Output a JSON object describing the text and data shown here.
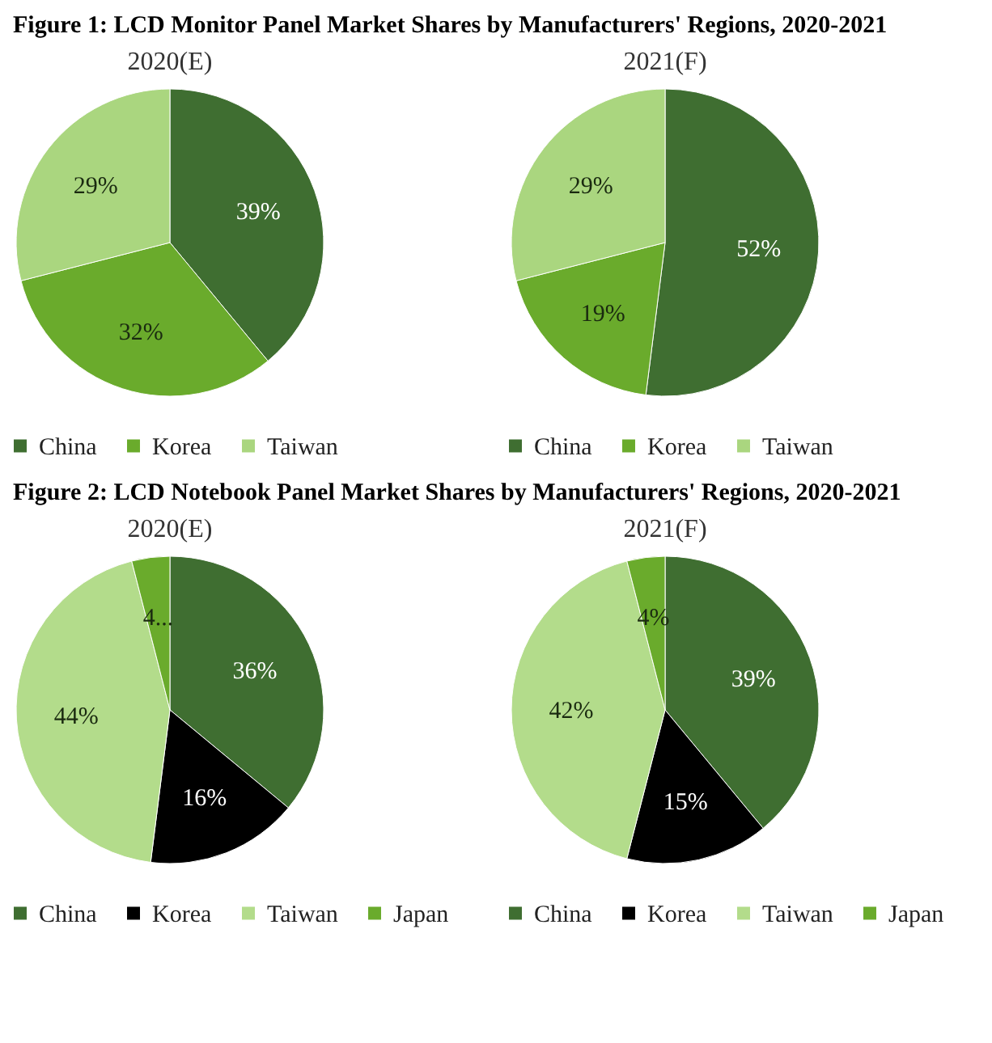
{
  "chart_data": [
    {
      "type": "pie",
      "title": "Figure 1: LCD Monitor Panel Market Shares by Manufacturers' Regions, 2020-2021",
      "subtitle": "2020(E)",
      "categories": [
        "China",
        "Korea",
        "Taiwan"
      ],
      "values": [
        39,
        32,
        29
      ],
      "colors": [
        "#3f6e31",
        "#6aab2c",
        "#aad67f"
      ],
      "value_labels": [
        "39%",
        "32%",
        "29%"
      ],
      "legend": "bottom"
    },
    {
      "type": "pie",
      "title": "2021(F)",
      "categories": [
        "China",
        "Korea",
        "Taiwan"
      ],
      "values": [
        52,
        19,
        29
      ],
      "colors": [
        "#3f6e31",
        "#6aab2c",
        "#aad67f"
      ],
      "value_labels": [
        "52%",
        "19%",
        "29%"
      ],
      "legend": "bottom"
    },
    {
      "type": "pie",
      "title": "Figure 2: LCD Notebook Panel Market Shares by Manufacturers' Regions, 2020-2021",
      "subtitle": "2020(E)",
      "categories": [
        "China",
        "Korea",
        "Taiwan",
        "Japan"
      ],
      "values": [
        36,
        16,
        44,
        4
      ],
      "colors": [
        "#3f6e31",
        "#000000",
        "#b3dc8b",
        "#6aab2c"
      ],
      "value_labels": [
        "36%",
        "16%",
        "44%",
        "4..."
      ],
      "legend": "bottom"
    },
    {
      "type": "pie",
      "title": "2021(F)",
      "categories": [
        "China",
        "Korea",
        "Taiwan",
        "Japan"
      ],
      "values": [
        39,
        15,
        42,
        4
      ],
      "colors": [
        "#3f6e31",
        "#000000",
        "#b3dc8b",
        "#6aab2c"
      ],
      "value_labels": [
        "39%",
        "15%",
        "42%",
        "4%"
      ],
      "legend": "bottom"
    }
  ]
}
